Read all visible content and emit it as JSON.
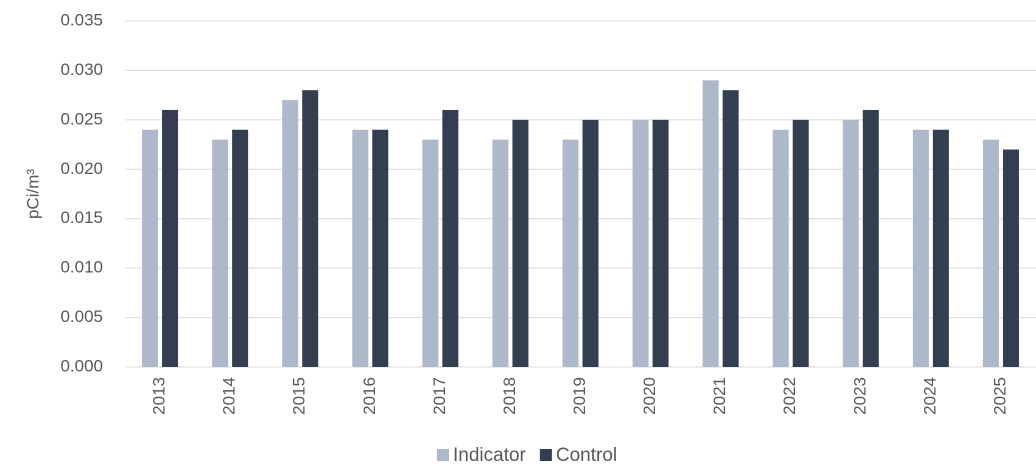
{
  "chart_data": {
    "type": "bar",
    "y_label": "pCi/m³",
    "categories": [
      "2013",
      "2014",
      "2015",
      "2016",
      "2017",
      "2018",
      "2019",
      "2020",
      "2021",
      "2022",
      "2023",
      "2024",
      "2025"
    ],
    "series": [
      {
        "name": "Indicator",
        "color": "#adb9ca",
        "values": [
          0.024,
          0.023,
          0.027,
          0.024,
          0.023,
          0.023,
          0.023,
          0.025,
          0.029,
          0.024,
          0.025,
          0.024,
          0.023
        ]
      },
      {
        "name": "Control",
        "color": "#333f50",
        "values": [
          0.026,
          0.024,
          0.028,
          0.024,
          0.026,
          0.025,
          0.025,
          0.025,
          0.028,
          0.025,
          0.026,
          0.024,
          0.022
        ]
      }
    ],
    "ylim": [
      0,
      0.035
    ],
    "yticks": [
      {
        "value": 0,
        "label": "0.000"
      },
      {
        "value": 0.005,
        "label": "0.005"
      },
      {
        "value": 0.01,
        "label": "0.010"
      },
      {
        "value": 0.015,
        "label": "0.015"
      },
      {
        "value": 0.02,
        "label": "0.020"
      },
      {
        "value": 0.025,
        "label": "0.025"
      },
      {
        "value": 0.03,
        "label": "0.030"
      },
      {
        "value": 0.035,
        "label": "0.035"
      }
    ],
    "grid": true,
    "legend": "bottom"
  }
}
